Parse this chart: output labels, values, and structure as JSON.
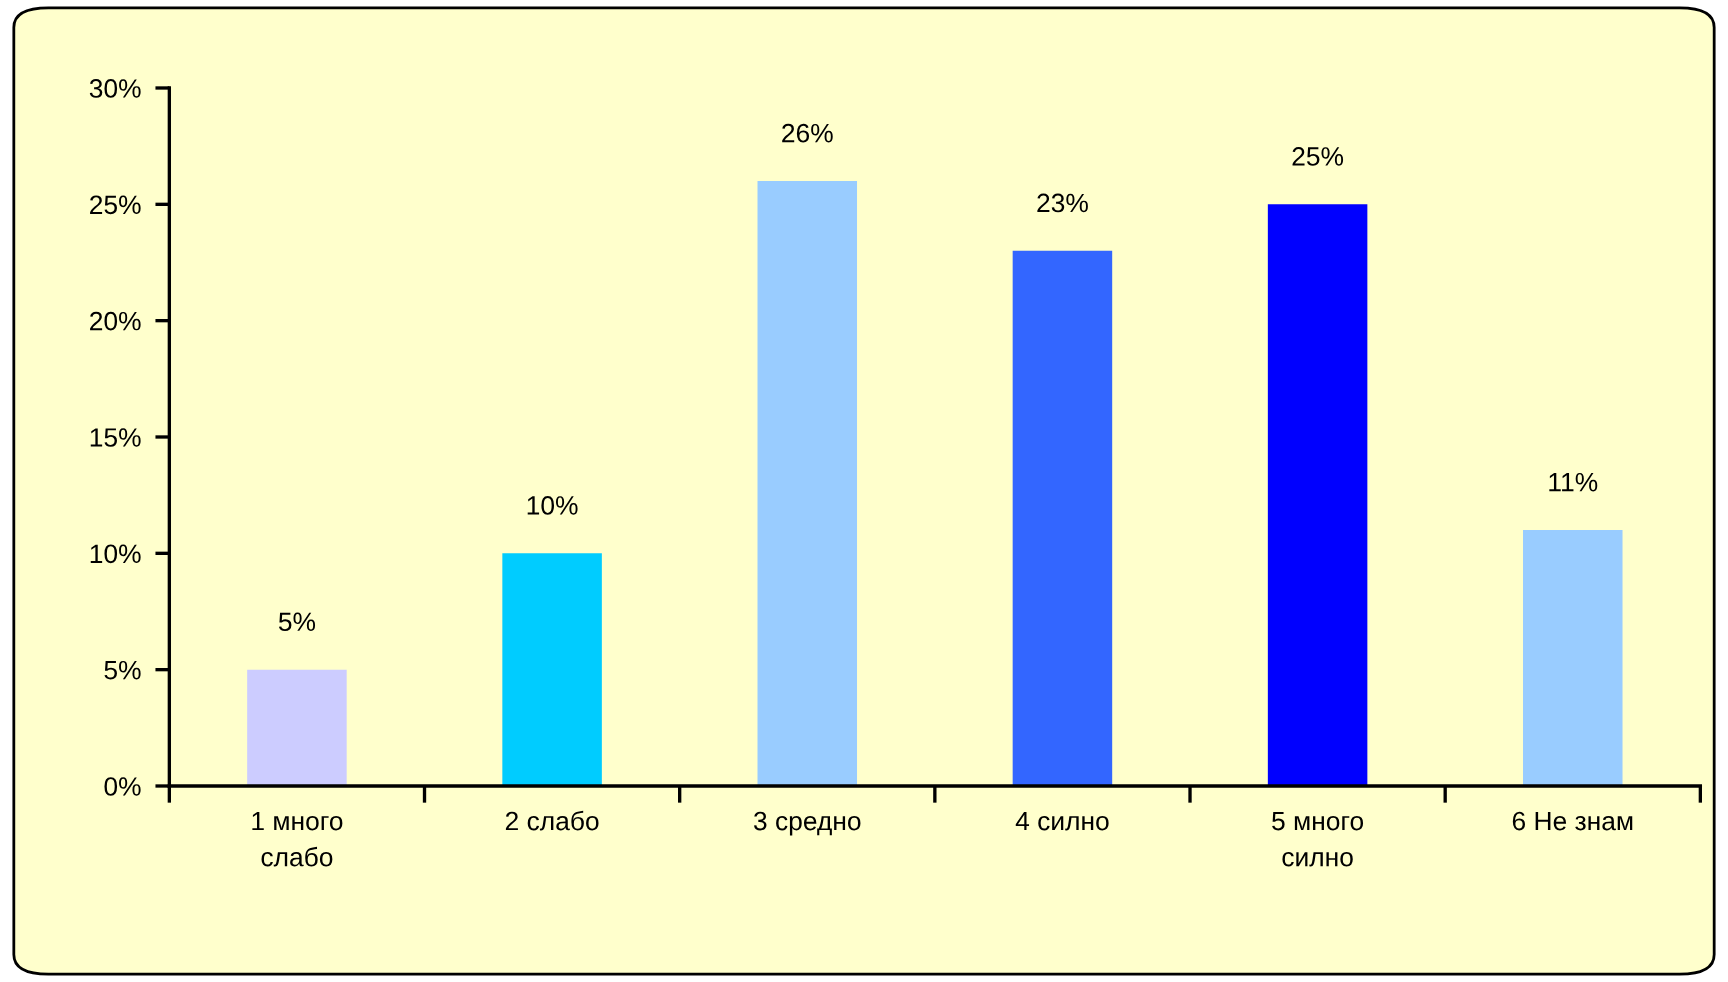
{
  "chart_data": {
    "type": "bar",
    "categories": [
      "1 много\nслабо",
      "2 слабо",
      "3 средно",
      "4 силно",
      "5 много\nсилно",
      "6 Не знам"
    ],
    "values": [
      5,
      10,
      26,
      23,
      25,
      11
    ],
    "colors": [
      "#ccccff",
      "#00ccff",
      "#99ccff",
      "#3366ff",
      "#0000ff",
      "#99ccff"
    ],
    "value_labels": [
      "5%",
      "10%",
      "26%",
      "23%",
      "25%",
      "11%"
    ],
    "ylim": [
      0,
      30
    ],
    "yticks": [
      {
        "value": 0,
        "label": "0%"
      },
      {
        "value": 5,
        "label": "5%"
      },
      {
        "value": 10,
        "label": "10%"
      },
      {
        "value": 15,
        "label": "15%"
      },
      {
        "value": 20,
        "label": "20%"
      },
      {
        "value": 25,
        "label": "25%"
      },
      {
        "value": 30,
        "label": "30%"
      }
    ]
  }
}
